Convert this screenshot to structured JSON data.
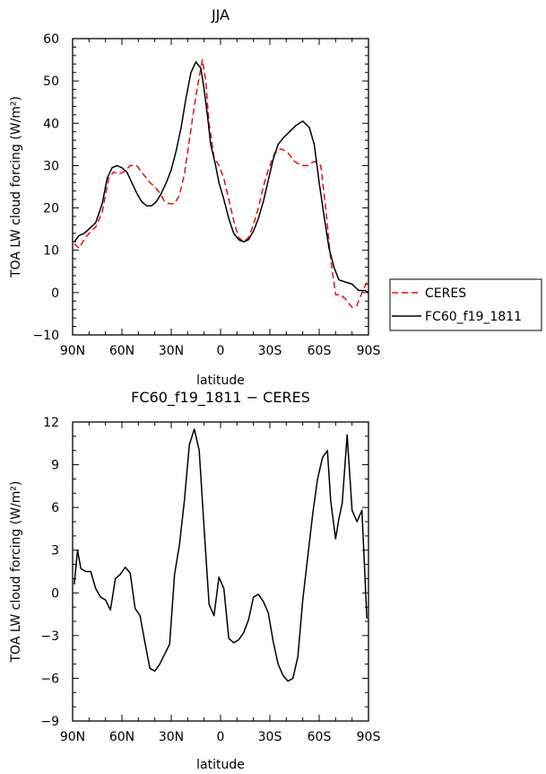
{
  "chart_data": [
    {
      "type": "line",
      "title": "JJA",
      "xlabel": "latitude",
      "ylabel": "TOA LW cloud forcing (W/m²)",
      "xlim": [
        90,
        -90
      ],
      "ylim": [
        -10,
        60
      ],
      "xticks": [
        90,
        60,
        30,
        0,
        -30,
        -60,
        -90
      ],
      "xtick_labels": [
        "90N",
        "60N",
        "30N",
        "0",
        "30S",
        "60S",
        "90S"
      ],
      "yticks": [
        -10,
        0,
        10,
        20,
        30,
        40,
        50,
        60
      ],
      "ytick_labels": [
        "−10",
        "0",
        "10",
        "20",
        "30",
        "40",
        "50",
        "60"
      ],
      "legend": "right",
      "series": [
        {
          "name": "CERES",
          "color": "#dd1111",
          "dash": "dashed",
          "x": [
            89,
            86,
            83,
            80,
            76,
            72,
            68,
            65,
            62,
            59,
            55,
            51,
            47,
            43,
            40,
            37,
            34,
            31,
            28,
            25,
            22,
            19,
            16,
            13,
            11,
            9,
            7,
            4,
            1,
            -2,
            -5,
            -8,
            -11,
            -14,
            -17,
            -20,
            -23,
            -26,
            -29,
            -33,
            -37,
            -41,
            -45,
            -49,
            -53,
            -57,
            -61,
            -64,
            -67,
            -70,
            -73,
            -76,
            -80,
            -83,
            -86,
            -89
          ],
          "y": [
            11.5,
            10.5,
            12.5,
            14,
            15.5,
            19,
            27,
            28.5,
            28,
            28.5,
            30,
            30,
            28,
            26,
            25,
            23.5,
            21.5,
            21,
            21,
            23,
            28,
            36,
            44,
            51,
            55,
            50,
            40,
            32,
            30,
            27,
            22,
            17,
            13,
            12,
            13,
            16,
            20,
            25,
            29,
            33,
            34,
            33,
            31,
            30,
            30,
            31,
            30,
            20,
            8,
            -0.5,
            -0.5,
            -1.5,
            -3.5,
            -3,
            0,
            2.5
          ]
        },
        {
          "name": "FC60_f19_1811",
          "color": "#000000",
          "dash": "solid",
          "x": [
            89,
            86,
            83,
            80,
            76,
            72,
            69,
            66,
            63,
            60,
            57,
            54,
            51,
            48,
            45,
            42,
            39,
            36,
            33,
            30,
            27,
            24,
            21,
            18,
            15,
            12,
            10,
            8,
            6,
            3,
            1,
            -2,
            -5,
            -8,
            -11,
            -14,
            -17,
            -20,
            -23,
            -26,
            -29,
            -32,
            -35,
            -38,
            -42,
            -46,
            -50,
            -54,
            -57,
            -60,
            -63,
            -66,
            -69,
            -72,
            -76,
            -80,
            -84,
            -88,
            -90
          ],
          "y": [
            12,
            13.5,
            14,
            15,
            16.5,
            21,
            27,
            29.5,
            30,
            29.5,
            28.5,
            26,
            23.5,
            21.5,
            20.5,
            20.5,
            21.5,
            23.5,
            26,
            29,
            33.5,
            39,
            46,
            52,
            54.5,
            53,
            48,
            42,
            35,
            30,
            26,
            22,
            17.5,
            14,
            12.5,
            12,
            12.5,
            14.5,
            17.5,
            21.5,
            26.5,
            31.5,
            35,
            36.5,
            38,
            39.5,
            40.5,
            39,
            35,
            26,
            18,
            10.5,
            6,
            3,
            2.5,
            2,
            0.5,
            0.5,
            0
          ]
        }
      ]
    },
    {
      "type": "line",
      "title": "FC60_f19_1811 − CERES",
      "xlabel": "latitude",
      "ylabel": "TOA LW cloud forcing (W/m²)",
      "xlim": [
        90,
        -90
      ],
      "ylim": [
        -9,
        12
      ],
      "xticks": [
        90,
        60,
        30,
        0,
        -30,
        -60,
        -90
      ],
      "xtick_labels": [
        "90N",
        "60N",
        "30N",
        "0",
        "30S",
        "60S",
        "90S"
      ],
      "yticks": [
        -9,
        -6,
        -3,
        0,
        3,
        6,
        9,
        12
      ],
      "ytick_labels": [
        "−9",
        "−6",
        "−3",
        "0",
        "3",
        "6",
        "9",
        "12"
      ],
      "series": [
        {
          "color": "#000000",
          "dash": "solid",
          "x": [
            89,
            87,
            85,
            82,
            79,
            76,
            73,
            70,
            67,
            64,
            61,
            58,
            55,
            52,
            49,
            46,
            43,
            40,
            37,
            34,
            31,
            28,
            25,
            22,
            19,
            16,
            13,
            10,
            7,
            4,
            1,
            -2,
            -5,
            -8,
            -11,
            -14,
            -17,
            -20,
            -23,
            -26,
            -29,
            -32,
            -35,
            -38,
            -41,
            -44,
            -47,
            -50,
            -53,
            -56,
            -59,
            -62,
            -65,
            -67,
            -70,
            -72,
            -74,
            -77,
            -80,
            -83,
            -86,
            -89
          ],
          "y": [
            0.6,
            3,
            1.7,
            1.5,
            1.5,
            0.3,
            -0.3,
            -0.5,
            -1.2,
            1,
            1.3,
            1.8,
            1.4,
            -1.1,
            -1.6,
            -3.5,
            -5.3,
            -5.5,
            -5,
            -4.3,
            -3.6,
            1.3,
            3.4,
            6.5,
            10.4,
            11.5,
            10,
            4.5,
            -0.8,
            -1.6,
            1.1,
            0.3,
            -3.2,
            -3.5,
            -3.3,
            -2.8,
            -1.9,
            -0.3,
            -0.1,
            -0.6,
            -1.4,
            -3.4,
            -5,
            -5.8,
            -6.2,
            -6,
            -4.5,
            -0.5,
            2.5,
            5.5,
            8,
            9.5,
            10,
            6.5,
            3.8,
            5.2,
            6.3,
            11.1,
            5.8,
            5,
            5.8,
            -1.8
          ]
        }
      ]
    }
  ]
}
